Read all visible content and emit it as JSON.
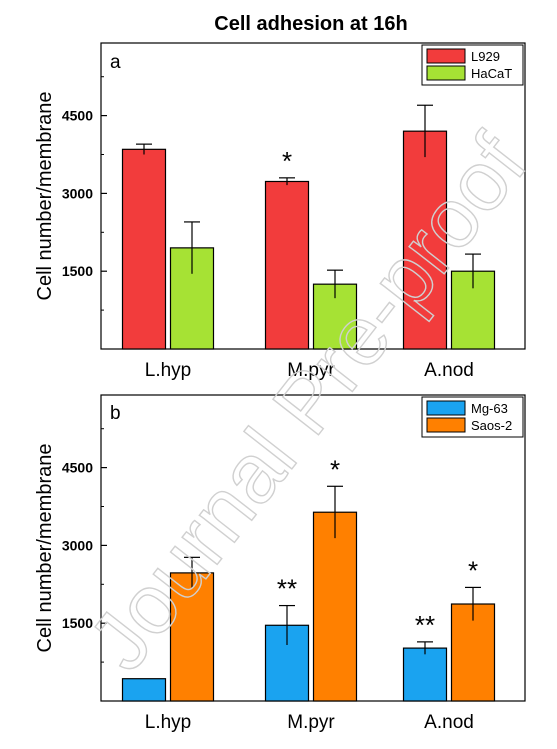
{
  "figure_title": "Cell adhesion at 16h",
  "watermark": "Journal Pre-proof",
  "chart_data": [
    {
      "type": "bar",
      "panel_label": "a",
      "categories": [
        "L.hyp",
        "M.pyr",
        "A.nod"
      ],
      "ylabel": "Cell number/membrane",
      "yticks": [
        1500,
        3000,
        4500
      ],
      "ylim": [
        0,
        5900
      ],
      "legend_position": "top-right",
      "series": [
        {
          "name": "L929",
          "color": "#f23c3c",
          "values": [
            3850,
            3230,
            4200
          ],
          "errors": [
            100,
            70,
            500
          ]
        },
        {
          "name": "HaCaT",
          "color": "#a6e234",
          "values": [
            1950,
            1250,
            1500
          ],
          "errors": [
            500,
            270,
            330
          ]
        }
      ],
      "annotations": [
        {
          "category": "M.pyr",
          "series": "L929",
          "text": "*"
        }
      ]
    },
    {
      "type": "bar",
      "panel_label": "b",
      "categories": [
        "L.hyp",
        "M.pyr",
        "A.nod"
      ],
      "ylabel": "Cell number/membrane",
      "yticks": [
        1500,
        3000,
        4500
      ],
      "ylim": [
        0,
        5900
      ],
      "legend_position": "top-right",
      "series": [
        {
          "name": "Mg-63",
          "color": "#1aa3f0",
          "values": [
            430,
            1460,
            1020
          ],
          "errors": [
            0,
            380,
            120
          ]
        },
        {
          "name": "Saos-2",
          "color": "#ff8000",
          "values": [
            2470,
            3640,
            1870
          ],
          "errors": [
            300,
            500,
            320
          ]
        }
      ],
      "annotations": [
        {
          "category": "M.pyr",
          "series": "Mg-63",
          "text": "**"
        },
        {
          "category": "A.nod",
          "series": "Mg-63",
          "text": "**"
        },
        {
          "category": "A.nod",
          "series": "Saos-2",
          "text": "*"
        },
        {
          "category": "M.pyr",
          "series": "Saos-2",
          "text": "*"
        }
      ]
    }
  ]
}
